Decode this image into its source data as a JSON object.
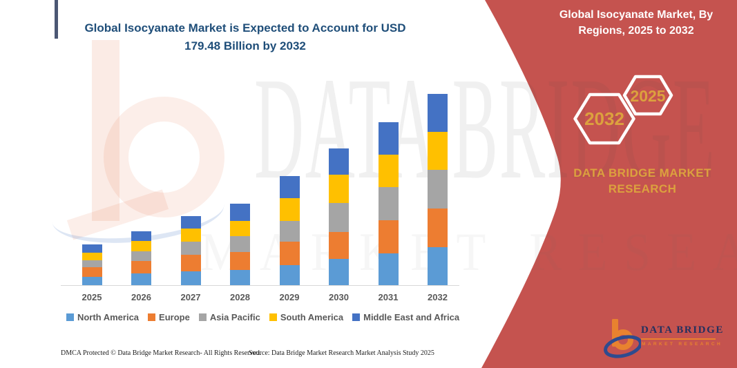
{
  "panel": {
    "title": "Global Isocyanate Market, By Regions, 2025 to 2032",
    "badges": [
      {
        "label": "2032"
      },
      {
        "label": "2025"
      }
    ],
    "brand": "DATA BRIDGE MARKET RESEARCH",
    "logo": {
      "title": "DATA BRIDGE",
      "subtitle": "MARKET RESEARCH"
    },
    "colors": {
      "panel_red": "#C5534F",
      "gold": "#DCA13E",
      "hex_outline": "#FFFFFF"
    }
  },
  "watermark": {
    "line1": "DATA BRIDGE",
    "line2": "MARKET RESEARCH"
  },
  "footer": {
    "dmca": "DMCA Protected © Data Bridge Market Research-  All Rights Reserved.",
    "source": "Source: Data Bridge Market Research  Market Analysis Study 2025"
  },
  "chart_data": {
    "type": "bar",
    "stacked": true,
    "title": "Global Isocyanate Market is Expected to Account for USD 179.48 Billion by 2032",
    "stated_value": "USD 179.48 Billion by 2032",
    "value_unit": "USD Billion",
    "categories": [
      "2025",
      "2026",
      "2027",
      "2028",
      "2029",
      "2030",
      "2031",
      "2032"
    ],
    "series": [
      {
        "name": "North America",
        "color": "#5B9BD5",
        "values": [
          7.8,
          11.0,
          13.0,
          14.3,
          18.8,
          24.6,
          29.8,
          35.6
        ]
      },
      {
        "name": "Europe",
        "color": "#ED7D31",
        "values": [
          9.1,
          11.7,
          15.6,
          16.8,
          22.0,
          25.3,
          31.1,
          36.3
        ]
      },
      {
        "name": "Asia Pacific",
        "color": "#A5A5A5",
        "values": [
          6.5,
          9.1,
          12.3,
          14.9,
          19.4,
          27.2,
          31.1,
          36.3
        ]
      },
      {
        "name": "South America",
        "color": "#FFC000",
        "values": [
          7.1,
          9.7,
          12.3,
          14.3,
          21.4,
          26.6,
          30.5,
          35.6
        ]
      },
      {
        "name": "Middle East and Africa",
        "color": "#4472C4",
        "values": [
          7.8,
          9.1,
          11.7,
          16.2,
          20.7,
          24.6,
          30.5,
          35.68
        ]
      }
    ],
    "totals_estimated": [
      38.3,
      50.6,
      64.9,
      76.5,
      102.3,
      128.3,
      153.0,
      179.48
    ],
    "ylim": [
      0,
      180
    ],
    "grid": false,
    "y_axis_shown": false,
    "legend_position": "bottom",
    "title_color": "#1F4E79",
    "axis_text_color": "#595959"
  }
}
